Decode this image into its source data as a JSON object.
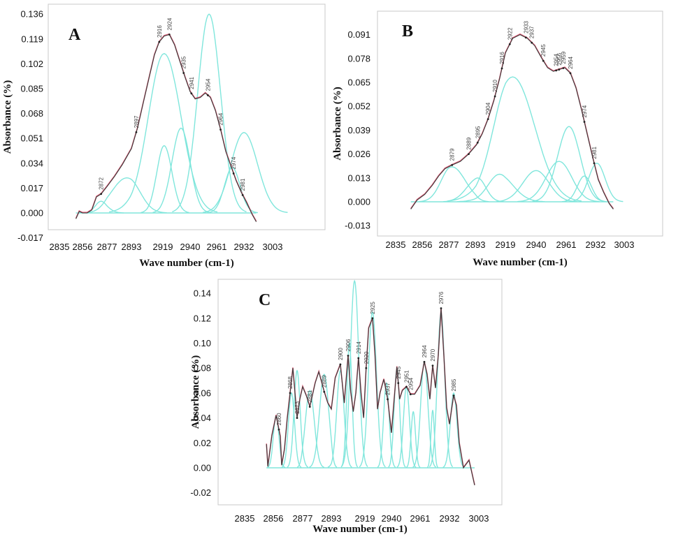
{
  "colors": {
    "component": "#80e6dc",
    "fit": "#e0607a",
    "observed": "#3a3a3a",
    "frame": "#c8c8c8"
  },
  "chart_data": [
    {
      "type": "line",
      "panel": "A",
      "xlabel": "Wave number (cm-1)",
      "ylabel": "Absorbance (%)",
      "x_ticks": [
        "2835",
        "2856",
        "2877",
        "2893",
        "2919",
        "2940",
        "2961",
        "2932",
        "3003"
      ],
      "y_ticks": [
        "-0.017",
        "0.000",
        "0.017",
        "0.034",
        "0.051",
        "0.068",
        "0.085",
        "0.102",
        "0.119",
        "0.136"
      ],
      "ylim": [
        -0.017,
        0.136
      ],
      "peak_labels": [
        "2872",
        "2897",
        "2916",
        "2924",
        "2935",
        "2941",
        "2954",
        "2964",
        "2974",
        "2981"
      ],
      "components": [
        {
          "center": 2872,
          "height": 0.008,
          "width": 5
        },
        {
          "center": 2890,
          "height": 0.024,
          "width": 10
        },
        {
          "center": 2920,
          "height": 0.109,
          "width": 13
        },
        {
          "center": 2920,
          "height": 0.046,
          "width": 6
        },
        {
          "center": 2933,
          "height": 0.058,
          "width": 7
        },
        {
          "center": 2955,
          "height": 0.136,
          "width": 9
        },
        {
          "center": 2973,
          "height": 0.031,
          "width": 6
        },
        {
          "center": 2982,
          "height": 0.055,
          "width": 10
        }
      ],
      "fit": {
        "x": [
          2850,
          2853,
          2856,
          2860,
          2864,
          2868,
          2872,
          2877,
          2882,
          2887,
          2893,
          2898,
          2903,
          2908,
          2912,
          2916,
          2920,
          2924,
          2928,
          2932,
          2936,
          2940,
          2944,
          2948,
          2952,
          2956,
          2960,
          2964,
          2968,
          2972,
          2976,
          2980,
          2984,
          2988,
          2991
        ],
        "y": [
          -0.004,
          0.001,
          0.0,
          0.0,
          0.002,
          0.011,
          0.013,
          0.018,
          0.025,
          0.033,
          0.044,
          0.058,
          0.076,
          0.094,
          0.108,
          0.117,
          0.121,
          0.122,
          0.115,
          0.104,
          0.093,
          0.083,
          0.078,
          0.079,
          0.082,
          0.079,
          0.07,
          0.057,
          0.042,
          0.032,
          0.022,
          0.014,
          0.007,
          -0.001,
          -0.006
        ]
      }
    },
    {
      "type": "line",
      "panel": "B",
      "xlabel": "Wave number (cm-1)",
      "ylabel": "Absorbance (%)",
      "x_ticks": [
        "2835",
        "2856",
        "2877",
        "2893",
        "2919",
        "2940",
        "2961",
        "2932",
        "3003"
      ],
      "y_ticks": [
        "-0.013",
        "0.000",
        "0.013",
        "0.026",
        "0.039",
        "0.052",
        "0.065",
        "0.078",
        "0.091"
      ],
      "ylim": [
        -0.013,
        0.091
      ],
      "peak_labels": [
        "2879",
        "2889",
        "2895",
        "2904",
        "2910",
        "2916",
        "2922",
        "2933",
        "2937",
        "2945",
        "2954",
        "2956",
        "2959",
        "2964",
        "2974",
        "2981"
      ],
      "components": [
        {
          "center": 2879,
          "height": 0.019,
          "width": 8
        },
        {
          "center": 2895,
          "height": 0.013,
          "width": 7
        },
        {
          "center": 2914,
          "height": 0.015,
          "width": 10
        },
        {
          "center": 2924,
          "height": 0.068,
          "width": 15
        },
        {
          "center": 2940,
          "height": 0.017,
          "width": 9
        },
        {
          "center": 2956,
          "height": 0.022,
          "width": 9
        },
        {
          "center": 2963,
          "height": 0.041,
          "width": 8
        },
        {
          "center": 2974,
          "height": 0.014,
          "width": 5
        },
        {
          "center": 2983,
          "height": 0.021,
          "width": 6
        }
      ],
      "fit": {
        "x": [
          2847,
          2852,
          2858,
          2864,
          2869,
          2874,
          2879,
          2884,
          2889,
          2894,
          2899,
          2904,
          2909,
          2914,
          2919,
          2924,
          2929,
          2934,
          2939,
          2944,
          2948,
          2952,
          2956,
          2960,
          2964,
          2968,
          2972,
          2976,
          2980,
          2984,
          2988,
          2992,
          2995
        ],
        "y": [
          -0.004,
          0.001,
          0.004,
          0.009,
          0.014,
          0.018,
          0.02,
          0.022,
          0.026,
          0.031,
          0.037,
          0.045,
          0.055,
          0.067,
          0.081,
          0.089,
          0.091,
          0.089,
          0.085,
          0.078,
          0.073,
          0.071,
          0.072,
          0.073,
          0.07,
          0.062,
          0.05,
          0.037,
          0.024,
          0.012,
          0.005,
          -0.001,
          -0.004
        ]
      }
    },
    {
      "type": "line",
      "panel": "C",
      "xlabel": "Wave number (cm-1)",
      "ylabel": "Absorbance (%)",
      "x_ticks": [
        "2835",
        "2856",
        "2877",
        "2893",
        "2919",
        "2940",
        "2961",
        "2932",
        "3003"
      ],
      "y_ticks": [
        "-0.02",
        "0.00",
        "0.02",
        "0.04",
        "0.06",
        "0.08",
        "0.10",
        "0.12",
        "0.14"
      ],
      "ylim": [
        -0.02,
        0.15
      ],
      "peak_labels": [
        "2860",
        "2868",
        "2873",
        "2881",
        "2889",
        "2900",
        "2906",
        "2914",
        "2920",
        "2925",
        "2937",
        "2945",
        "2951",
        "2954",
        "2964",
        "2970",
        "2976",
        "2985"
      ],
      "components": [
        {
          "center": 2858,
          "height": 0.042,
          "width": 2.0
        },
        {
          "center": 2869,
          "height": 0.06,
          "width": 2.2
        },
        {
          "center": 2873,
          "height": 0.078,
          "width": 2.2
        },
        {
          "center": 2881,
          "height": 0.062,
          "width": 2.5
        },
        {
          "center": 2889,
          "height": 0.075,
          "width": 2.6
        },
        {
          "center": 2900,
          "height": 0.078,
          "width": 2.8
        },
        {
          "center": 2907,
          "height": 0.1,
          "width": 2.0
        },
        {
          "center": 2911,
          "height": 0.15,
          "width": 3.2
        },
        {
          "center": 2925,
          "height": 0.125,
          "width": 3.2
        },
        {
          "center": 2936,
          "height": 0.068,
          "width": 2.2
        },
        {
          "center": 2944,
          "height": 0.08,
          "width": 2.0
        },
        {
          "center": 2951,
          "height": 0.065,
          "width": 2.2
        },
        {
          "center": 2956,
          "height": 0.045,
          "width": 1.6
        },
        {
          "center": 2964,
          "height": 0.085,
          "width": 2.6
        },
        {
          "center": 2970,
          "height": 0.046,
          "width": 1.2
        },
        {
          "center": 2976,
          "height": 0.125,
          "width": 2.6
        },
        {
          "center": 2985,
          "height": 0.06,
          "width": 2.4
        }
      ],
      "fit": {
        "x": [
          2851,
          2852,
          2855,
          2858,
          2861,
          2862,
          2864,
          2866,
          2868,
          2870,
          2873,
          2875,
          2877,
          2879,
          2881,
          2884,
          2886,
          2889,
          2891,
          2893,
          2896,
          2900,
          2903,
          2906,
          2908,
          2910,
          2912,
          2914,
          2916,
          2918,
          2920,
          2922,
          2925,
          2927,
          2929,
          2931,
          2934,
          2937,
          2940,
          2942,
          2944,
          2946,
          2948,
          2951,
          2954,
          2957,
          2961,
          2964,
          2966,
          2968,
          2970,
          2972,
          2974,
          2976,
          2978,
          2980,
          2982,
          2985,
          2987,
          2989,
          2992,
          2996,
          3000
        ],
        "y": [
          0.019,
          0.001,
          0.026,
          0.042,
          0.025,
          0.002,
          0.015,
          0.04,
          0.06,
          0.08,
          0.04,
          0.055,
          0.065,
          0.058,
          0.049,
          0.068,
          0.077,
          0.061,
          0.052,
          0.047,
          0.072,
          0.083,
          0.052,
          0.09,
          0.061,
          0.045,
          0.06,
          0.088,
          0.06,
          0.04,
          0.08,
          0.112,
          0.12,
          0.09,
          0.047,
          0.06,
          0.071,
          0.055,
          0.028,
          0.055,
          0.081,
          0.055,
          0.062,
          0.065,
          0.059,
          0.059,
          0.066,
          0.085,
          0.075,
          0.055,
          0.082,
          0.064,
          0.09,
          0.128,
          0.09,
          0.048,
          0.035,
          0.058,
          0.05,
          0.02,
          0.0,
          0.006,
          -0.014
        ]
      }
    }
  ]
}
